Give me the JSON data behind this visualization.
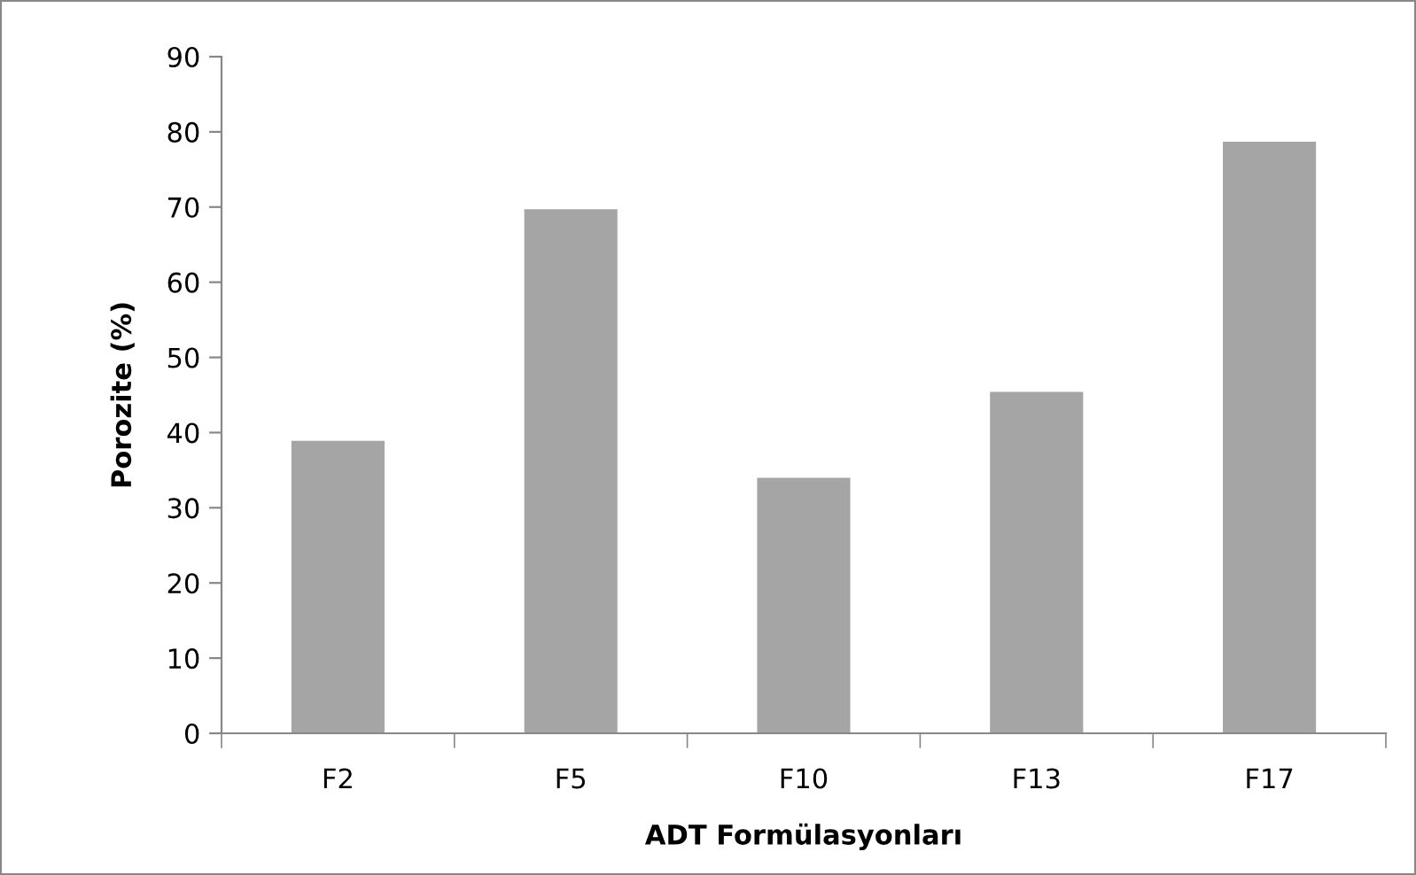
{
  "chart_data": {
    "type": "bar",
    "xlabel": "ADT Formülasyonları",
    "ylabel": "Porozite (%)",
    "categories": [
      "F2",
      "F5",
      "F10",
      "F13",
      "F17"
    ],
    "values": [
      38.9,
      69.7,
      34.0,
      45.4,
      78.7
    ],
    "color": "#a5a5a5",
    "ylim": [
      0,
      90
    ],
    "yticks": [
      0,
      10,
      20,
      30,
      40,
      50,
      60,
      70,
      80,
      90
    ],
    "grid": false,
    "legend": false
  }
}
